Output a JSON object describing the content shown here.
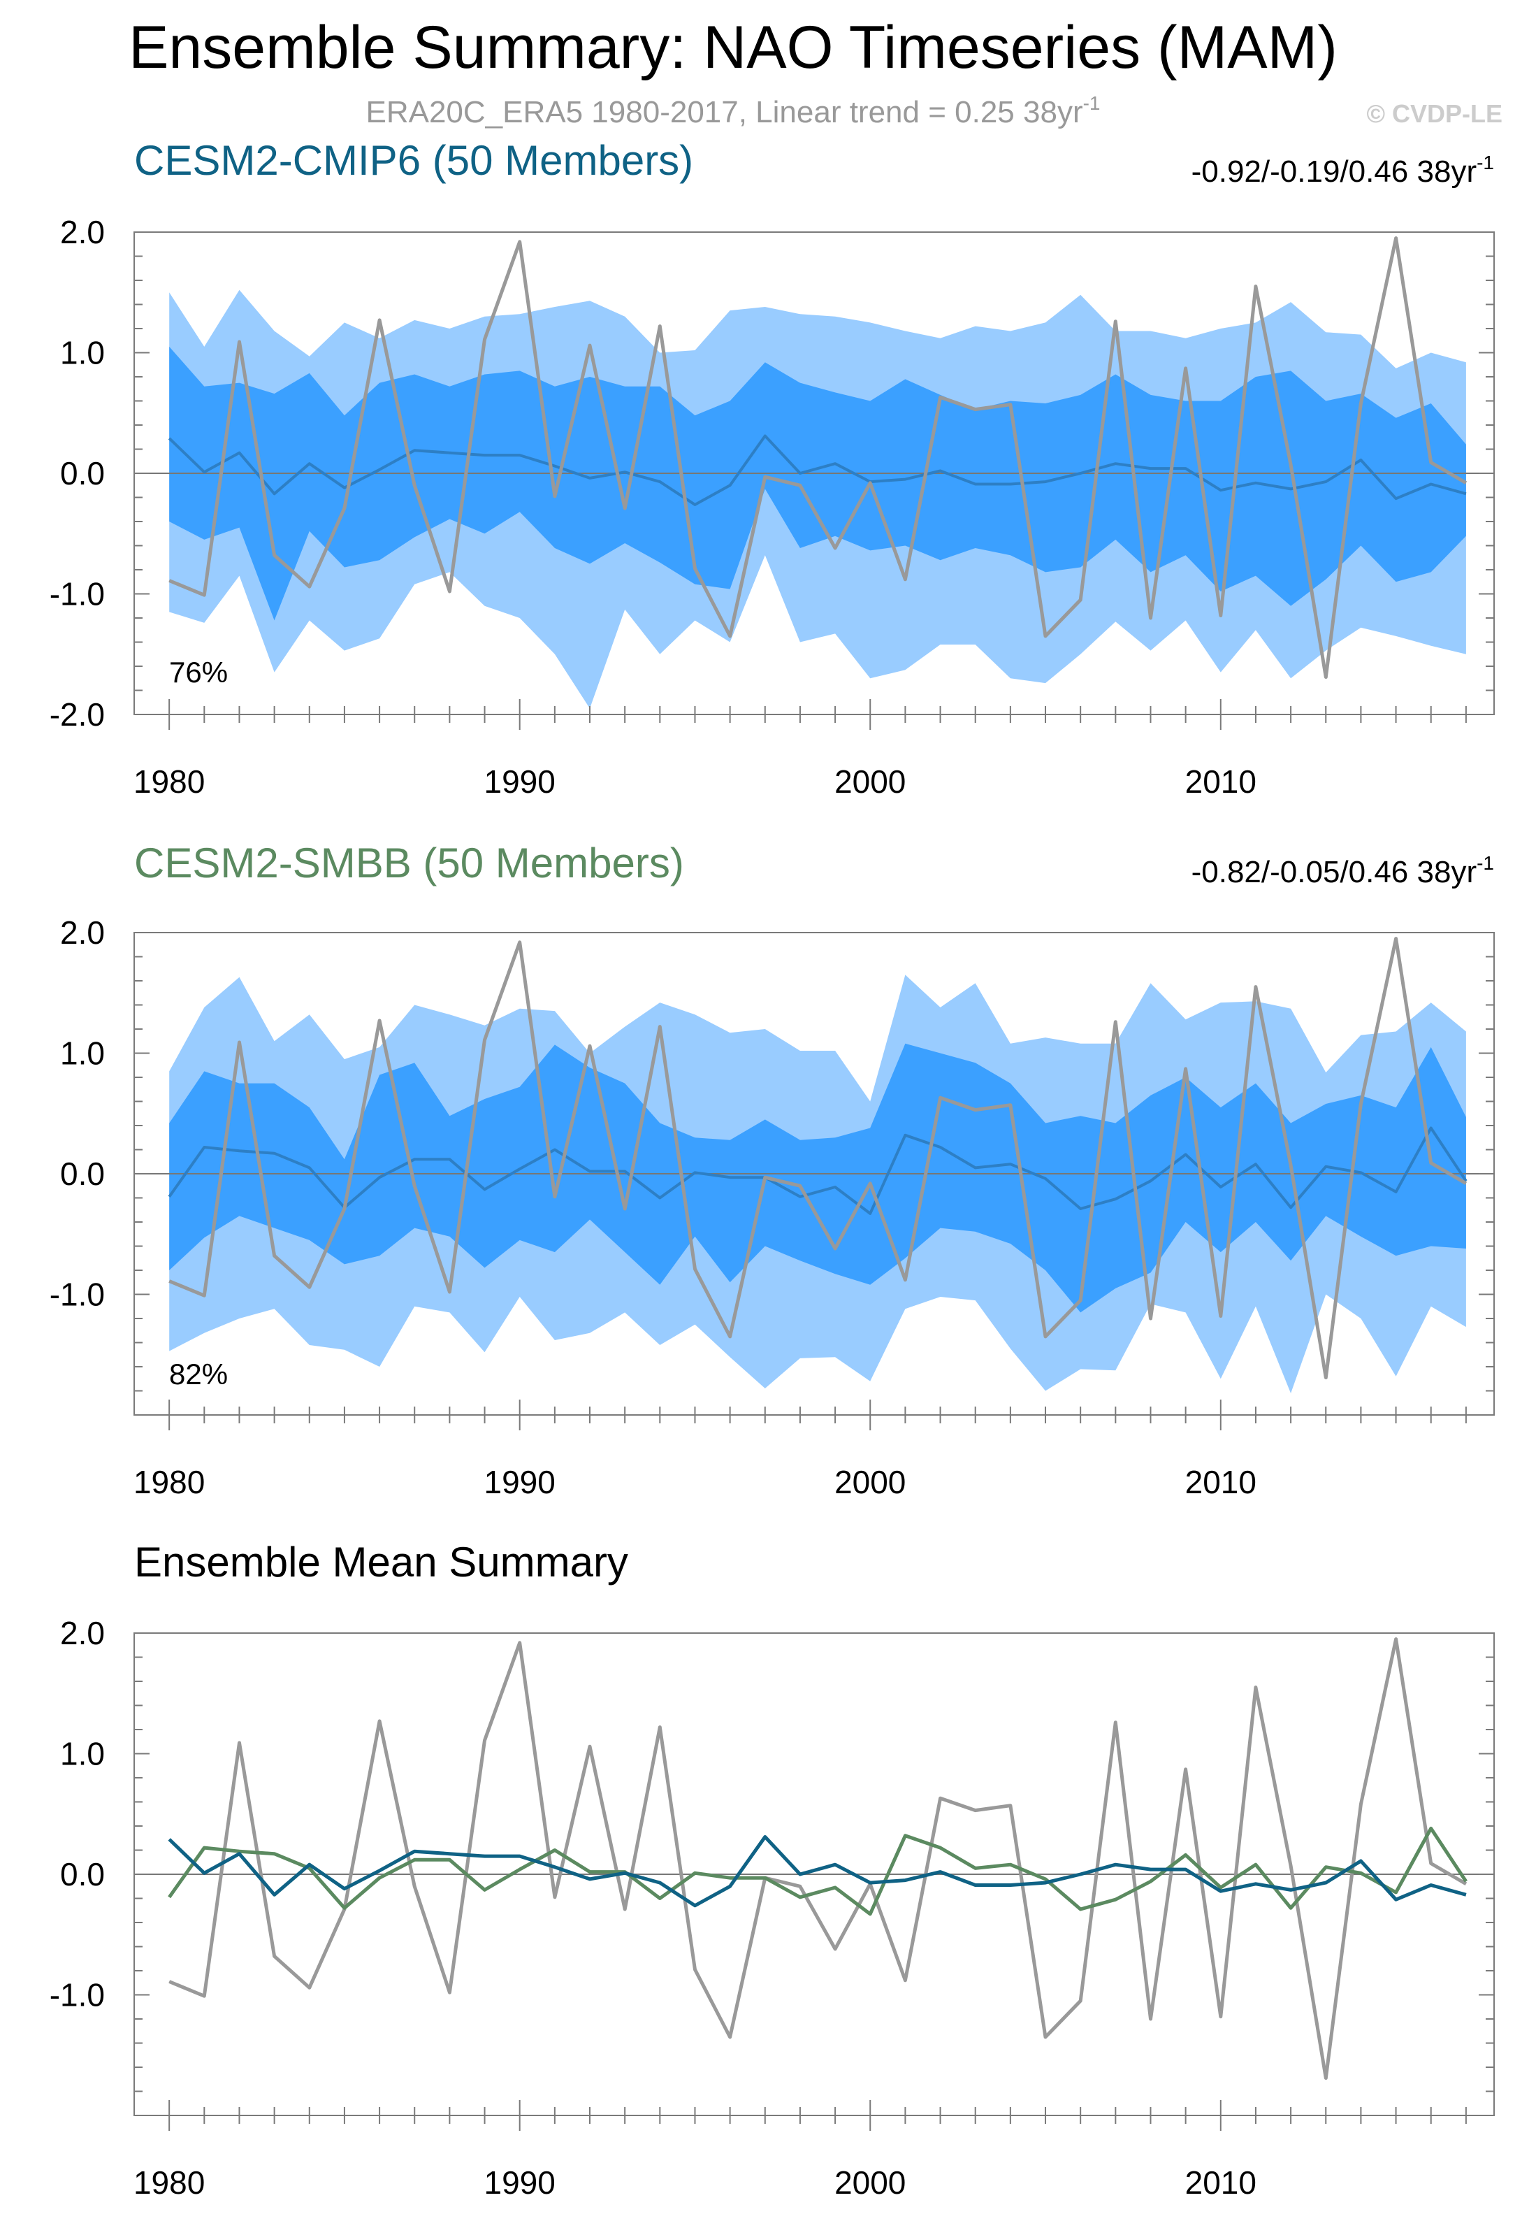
{
  "main_title": "Ensemble Summary: NAO Timeseries (MAM)",
  "subtitle": {
    "text": "ERA20C_ERA5 1980-2017, Linear trend = 0.25 38yr",
    "sup": "-1"
  },
  "copyright": "© CVDP-LE",
  "colors": {
    "obs": "#999999",
    "band_outer": "#99ccff",
    "band_inner": "#3ba0ff",
    "cmip6": "#0f6285",
    "smbb": "#5b8a60",
    "cmip6_mean_in_band": "#2d7fc5"
  },
  "chart_data": [
    {
      "type": "area",
      "panel": "CESM2-CMIP6",
      "title": "CESM2-CMIP6 (50 Members)",
      "trend_text": "-0.92/-0.19/0.46 38yr",
      "trend_sup": "-1",
      "pct_label": "76%",
      "x": [
        1980,
        1981,
        1982,
        1983,
        1984,
        1985,
        1986,
        1987,
        1988,
        1989,
        1990,
        1991,
        1992,
        1993,
        1994,
        1995,
        1996,
        1997,
        1998,
        1999,
        2000,
        2001,
        2002,
        2003,
        2004,
        2005,
        2006,
        2007,
        2008,
        2009,
        2010,
        2011,
        2012,
        2013,
        2014,
        2015,
        2016,
        2017
      ],
      "ylim": [
        -2.0,
        2.0
      ],
      "yticks": [
        -2.0,
        -1.0,
        0.0,
        1.0,
        2.0
      ],
      "ytick_labels": [
        "-2.0",
        "-1.0",
        "0.0",
        "1.0",
        "2.0"
      ],
      "xticks": [
        1980,
        1990,
        2000,
        2010
      ],
      "xtick_labels": [
        "1980",
        "1990",
        "2000",
        "2010"
      ],
      "outer_upper": [
        1.5,
        1.05,
        1.52,
        1.18,
        0.97,
        1.25,
        1.12,
        1.27,
        1.2,
        1.3,
        1.32,
        1.38,
        1.43,
        1.3,
        1.0,
        1.02,
        1.35,
        1.38,
        1.32,
        1.3,
        1.25,
        1.18,
        1.12,
        1.22,
        1.18,
        1.25,
        1.48,
        1.18,
        1.18,
        1.12,
        1.2,
        1.25,
        1.42,
        1.17,
        1.15,
        0.87,
        1.0,
        0.92
      ],
      "inner_upper": [
        1.05,
        0.72,
        0.75,
        0.66,
        0.83,
        0.48,
        0.75,
        0.82,
        0.72,
        0.82,
        0.85,
        0.72,
        0.8,
        0.72,
        0.72,
        0.48,
        0.6,
        0.92,
        0.75,
        0.67,
        0.6,
        0.78,
        0.65,
        0.53,
        0.6,
        0.58,
        0.65,
        0.82,
        0.65,
        0.6,
        0.6,
        0.8,
        0.85,
        0.6,
        0.66,
        0.46,
        0.58,
        0.24
      ],
      "inner_lower": [
        -0.4,
        -0.55,
        -0.45,
        -1.22,
        -0.48,
        -0.78,
        -0.72,
        -0.53,
        -0.38,
        -0.5,
        -0.32,
        -0.62,
        -0.75,
        -0.58,
        -0.74,
        -0.92,
        -0.96,
        -0.13,
        -0.62,
        -0.52,
        -0.64,
        -0.6,
        -0.72,
        -0.62,
        -0.68,
        -0.82,
        -0.78,
        -0.55,
        -0.82,
        -0.68,
        -0.98,
        -0.85,
        -1.1,
        -0.88,
        -0.6,
        -0.9,
        -0.82,
        -0.52
      ],
      "outer_lower": [
        -1.15,
        -1.24,
        -0.85,
        -1.65,
        -1.22,
        -1.47,
        -1.37,
        -0.92,
        -0.82,
        -1.1,
        -1.2,
        -1.5,
        -1.95,
        -1.13,
        -1.5,
        -1.22,
        -1.4,
        -0.68,
        -1.4,
        -1.33,
        -1.7,
        -1.63,
        -1.42,
        -1.42,
        -1.7,
        -1.74,
        -1.5,
        -1.23,
        -1.47,
        -1.22,
        -1.65,
        -1.3,
        -1.7,
        -1.47,
        -1.28,
        -1.35,
        -1.43,
        -1.5
      ],
      "ensemble_mean": [
        0.29,
        0.01,
        0.17,
        -0.17,
        0.08,
        -0.12,
        0.03,
        0.19,
        0.17,
        0.15,
        0.15,
        0.06,
        -0.04,
        0.01,
        -0.07,
        -0.26,
        -0.1,
        0.31,
        0.0,
        0.08,
        -0.07,
        -0.05,
        0.02,
        -0.09,
        -0.09,
        -0.07,
        0.0,
        0.08,
        0.04,
        0.04,
        -0.14,
        -0.08,
        -0.13,
        -0.07,
        0.11,
        -0.21,
        -0.09,
        -0.17
      ],
      "observed": [
        -0.89,
        -1.01,
        1.09,
        -0.68,
        -0.94,
        -0.29,
        1.27,
        -0.1,
        -0.98,
        1.11,
        1.92,
        -0.19,
        1.06,
        -0.29,
        1.22,
        -0.79,
        -1.35,
        -0.03,
        -0.1,
        -0.62,
        -0.08,
        -0.88,
        0.63,
        0.53,
        0.57,
        -1.35,
        -1.05,
        1.26,
        -1.2,
        0.87,
        -1.18,
        1.55,
        0.07,
        -1.69,
        0.58,
        1.95,
        0.09,
        -0.08
      ]
    },
    {
      "type": "area",
      "panel": "CESM2-SMBB",
      "title": "CESM2-SMBB (50 Members)",
      "trend_text": "-0.82/-0.05/0.46 38yr",
      "trend_sup": "-1",
      "pct_label": "82%",
      "x": [
        1980,
        1981,
        1982,
        1983,
        1984,
        1985,
        1986,
        1987,
        1988,
        1989,
        1990,
        1991,
        1992,
        1993,
        1994,
        1995,
        1996,
        1997,
        1998,
        1999,
        2000,
        2001,
        2002,
        2003,
        2004,
        2005,
        2006,
        2007,
        2008,
        2009,
        2010,
        2011,
        2012,
        2013,
        2014,
        2015,
        2016,
        2017
      ],
      "ylim": [
        -2.0,
        2.0
      ],
      "yticks": [
        -1.0,
        0.0,
        1.0,
        2.0
      ],
      "ytick_labels": [
        "-1.0",
        "0.0",
        "1.0",
        "2.0"
      ],
      "xticks": [
        1980,
        1990,
        2000,
        2010
      ],
      "xtick_labels": [
        "1980",
        "1990",
        "2000",
        "2010"
      ],
      "outer_upper": [
        0.85,
        1.38,
        1.63,
        1.1,
        1.32,
        0.95,
        1.05,
        1.4,
        1.32,
        1.23,
        1.37,
        1.35,
        1.0,
        1.22,
        1.42,
        1.32,
        1.17,
        1.2,
        1.02,
        1.02,
        0.6,
        1.65,
        1.38,
        1.58,
        1.08,
        1.13,
        1.08,
        1.08,
        1.58,
        1.28,
        1.42,
        1.43,
        1.37,
        0.84,
        1.15,
        1.18,
        1.42,
        1.18
      ],
      "inner_upper": [
        0.42,
        0.85,
        0.75,
        0.75,
        0.55,
        0.12,
        0.82,
        0.92,
        0.48,
        0.62,
        0.72,
        1.07,
        0.88,
        0.75,
        0.42,
        0.3,
        0.28,
        0.45,
        0.28,
        0.3,
        0.38,
        1.08,
        1.0,
        0.92,
        0.75,
        0.42,
        0.48,
        0.42,
        0.65,
        0.8,
        0.55,
        0.75,
        0.42,
        0.58,
        0.65,
        0.55,
        1.05,
        0.47
      ],
      "inner_lower": [
        -0.8,
        -0.53,
        -0.35,
        -0.45,
        -0.55,
        -0.75,
        -0.68,
        -0.45,
        -0.52,
        -0.78,
        -0.55,
        -0.65,
        -0.38,
        -0.65,
        -0.92,
        -0.52,
        -0.9,
        -0.6,
        -0.72,
        -0.83,
        -0.92,
        -0.7,
        -0.45,
        -0.48,
        -0.58,
        -0.8,
        -1.15,
        -0.95,
        -0.82,
        -0.4,
        -0.65,
        -0.4,
        -0.72,
        -0.35,
        -0.52,
        -0.68,
        -0.6,
        -0.62
      ],
      "outer_lower": [
        -1.47,
        -1.32,
        -1.2,
        -1.12,
        -1.42,
        -1.46,
        -1.6,
        -1.1,
        -1.15,
        -1.48,
        -1.02,
        -1.38,
        -1.32,
        -1.15,
        -1.42,
        -1.25,
        -1.52,
        -1.78,
        -1.53,
        -1.52,
        -1.72,
        -1.12,
        -1.02,
        -1.05,
        -1.45,
        -1.8,
        -1.62,
        -1.63,
        -1.08,
        -1.15,
        -1.7,
        -1.1,
        -1.82,
        -1.0,
        -1.2,
        -1.68,
        -1.1,
        -1.27
      ],
      "ensemble_mean": [
        -0.19,
        0.22,
        0.19,
        0.17,
        0.05,
        -0.28,
        -0.03,
        0.12,
        0.12,
        -0.13,
        0.04,
        0.2,
        0.02,
        0.02,
        -0.2,
        0.01,
        -0.03,
        -0.03,
        -0.19,
        -0.11,
        -0.33,
        0.32,
        0.22,
        0.05,
        0.08,
        -0.04,
        -0.29,
        -0.21,
        -0.06,
        0.16,
        -0.11,
        0.08,
        -0.28,
        0.06,
        0.01,
        -0.15,
        0.38,
        -0.06
      ],
      "observed": [
        -0.89,
        -1.01,
        1.09,
        -0.68,
        -0.94,
        -0.29,
        1.27,
        -0.1,
        -0.98,
        1.11,
        1.92,
        -0.19,
        1.06,
        -0.29,
        1.22,
        -0.79,
        -1.35,
        -0.03,
        -0.1,
        -0.62,
        -0.08,
        -0.88,
        0.63,
        0.53,
        0.57,
        -1.35,
        -1.05,
        1.26,
        -1.2,
        0.87,
        -1.18,
        1.55,
        0.07,
        -1.69,
        0.58,
        1.95,
        0.09,
        -0.08
      ]
    },
    {
      "type": "line",
      "panel": "Ensemble Mean Summary",
      "title": "Ensemble Mean Summary",
      "x": [
        1980,
        1981,
        1982,
        1983,
        1984,
        1985,
        1986,
        1987,
        1988,
        1989,
        1990,
        1991,
        1992,
        1993,
        1994,
        1995,
        1996,
        1997,
        1998,
        1999,
        2000,
        2001,
        2002,
        2003,
        2004,
        2005,
        2006,
        2007,
        2008,
        2009,
        2010,
        2011,
        2012,
        2013,
        2014,
        2015,
        2016,
        2017
      ],
      "ylim": [
        -2.0,
        2.0
      ],
      "yticks": [
        -1.0,
        0.0,
        1.0,
        2.0
      ],
      "ytick_labels": [
        "-1.0",
        "0.0",
        "1.0",
        "2.0"
      ],
      "xticks": [
        1980,
        1990,
        2000,
        2010
      ],
      "xtick_labels": [
        "1980",
        "1990",
        "2000",
        "2010"
      ],
      "series": [
        {
          "name": "ERA20C_ERA5",
          "color": "#999999",
          "values": [
            -0.89,
            -1.01,
            1.09,
            -0.68,
            -0.94,
            -0.29,
            1.27,
            -0.1,
            -0.98,
            1.11,
            1.92,
            -0.19,
            1.06,
            -0.29,
            1.22,
            -0.79,
            -1.35,
            -0.03,
            -0.1,
            -0.62,
            -0.08,
            -0.88,
            0.63,
            0.53,
            0.57,
            -1.35,
            -1.05,
            1.26,
            -1.2,
            0.87,
            -1.18,
            1.55,
            0.07,
            -1.69,
            0.58,
            1.95,
            0.09,
            -0.08
          ]
        },
        {
          "name": "CESM2-SMBB",
          "color": "#5b8a60",
          "values": [
            -0.19,
            0.22,
            0.19,
            0.17,
            0.05,
            -0.28,
            -0.03,
            0.12,
            0.12,
            -0.13,
            0.04,
            0.2,
            0.02,
            0.02,
            -0.2,
            0.01,
            -0.03,
            -0.03,
            -0.19,
            -0.11,
            -0.33,
            0.32,
            0.22,
            0.05,
            0.08,
            -0.04,
            -0.29,
            -0.21,
            -0.06,
            0.16,
            -0.11,
            0.08,
            -0.28,
            0.06,
            0.01,
            -0.15,
            0.38,
            -0.06
          ]
        },
        {
          "name": "CESM2-CMIP6",
          "color": "#0f6285",
          "values": [
            0.29,
            0.01,
            0.17,
            -0.17,
            0.08,
            -0.12,
            0.03,
            0.19,
            0.17,
            0.15,
            0.15,
            0.06,
            -0.04,
            0.01,
            -0.07,
            -0.26,
            -0.1,
            0.31,
            0.0,
            0.08,
            -0.07,
            -0.05,
            0.02,
            -0.09,
            -0.09,
            -0.07,
            0.0,
            0.08,
            0.04,
            0.04,
            -0.14,
            -0.08,
            -0.13,
            -0.07,
            0.11,
            -0.21,
            -0.09,
            -0.17
          ]
        }
      ]
    }
  ]
}
